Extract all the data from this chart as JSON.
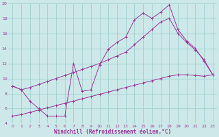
{
  "xlabel": "Windchill (Refroidissement éolien,°C)",
  "bg_color": "#cce8e8",
  "grid_color": "#99cccc",
  "line_color": "#993399",
  "xlim": [
    -0.5,
    23.5
  ],
  "ylim": [
    4,
    20
  ],
  "yticks": [
    4,
    6,
    8,
    10,
    12,
    14,
    16,
    18,
    20
  ],
  "xticks": [
    0,
    1,
    2,
    3,
    4,
    5,
    6,
    7,
    8,
    9,
    10,
    11,
    12,
    13,
    14,
    15,
    16,
    17,
    18,
    19,
    20,
    21,
    22,
    23
  ],
  "line1_x": [
    0,
    1,
    2,
    3,
    4,
    5,
    6,
    7,
    8,
    9,
    10,
    11,
    12,
    13,
    14,
    15,
    16,
    17,
    18,
    19,
    20,
    21,
    22,
    23
  ],
  "line1_y": [
    9,
    8.5,
    7,
    6,
    5,
    5,
    5,
    12,
    8.3,
    8.5,
    11.8,
    13.9,
    14.8,
    15.5,
    17.8,
    18.7,
    18.0,
    18.8,
    19.8,
    16.5,
    15.0,
    14.0,
    12.3,
    10.5
  ],
  "line2_x": [
    0,
    1,
    2,
    3,
    4,
    5,
    6,
    7,
    8,
    9,
    10,
    11,
    12,
    13,
    14,
    15,
    16,
    17,
    18,
    19,
    20,
    21,
    22,
    23
  ],
  "line2_y": [
    9.0,
    8.5,
    8.8,
    9.2,
    9.6,
    10.0,
    10.4,
    10.8,
    11.2,
    11.6,
    12.0,
    12.5,
    13.0,
    13.5,
    14.5,
    15.5,
    16.5,
    17.5,
    18.0,
    16.0,
    14.8,
    13.8,
    12.5,
    10.5
  ],
  "line3_x": [
    0,
    1,
    2,
    3,
    4,
    5,
    6,
    7,
    8,
    9,
    10,
    11,
    12,
    13,
    14,
    15,
    16,
    17,
    18,
    19,
    20,
    21,
    22,
    23
  ],
  "line3_y": [
    5.0,
    5.2,
    5.5,
    5.8,
    6.1,
    6.4,
    6.7,
    7.0,
    7.3,
    7.6,
    7.9,
    8.2,
    8.5,
    8.8,
    9.1,
    9.4,
    9.7,
    10.0,
    10.3,
    10.5,
    10.5,
    10.4,
    10.3,
    10.5
  ]
}
